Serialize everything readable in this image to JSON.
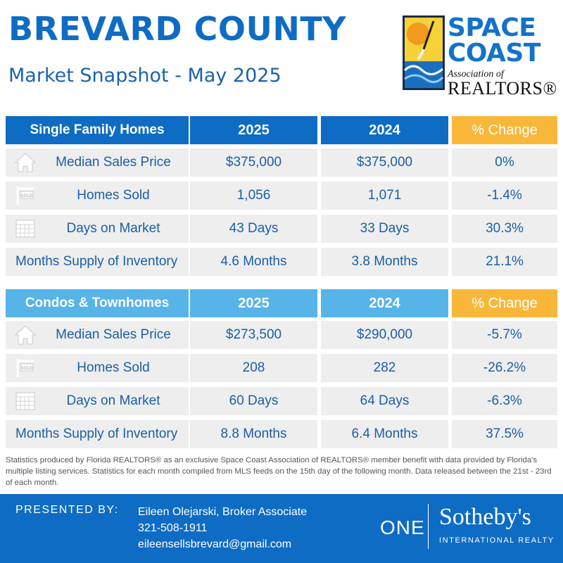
{
  "header": {
    "title": "BREVARD COUNTY",
    "subtitle": "Market Snapshot - May 2025"
  },
  "logo": {
    "line1": "SPACE",
    "line2": "COAST",
    "line3": "Association of",
    "line4": "REALTORS®",
    "colors": {
      "blue": "#1372c9",
      "orange": "#f29a1f",
      "yellow": "#f7d13a",
      "wave": "#1b6fc0"
    }
  },
  "single_family": {
    "header": {
      "label": "Single Family Homes",
      "col_2025": "2025",
      "col_2024": "2024",
      "col_change": "% Change"
    },
    "rows": [
      {
        "icon": "house-icon",
        "label": "Median Sales Price",
        "v2025": "$375,000",
        "v2024": "$375,000",
        "change": "0%"
      },
      {
        "icon": "sold-sign-icon",
        "label": "Homes Sold",
        "v2025": "1,056",
        "v2024": "1,071",
        "change": "-1.4%"
      },
      {
        "icon": "calendar-icon",
        "label": "Days on Market",
        "v2025": "43 Days",
        "v2024": "33 Days",
        "change": "30.3%"
      },
      {
        "icon": "",
        "label": "Months Supply of Inventory",
        "v2025": "4.6 Months",
        "v2024": "3.8 Months",
        "change": "21.1%"
      }
    ]
  },
  "condos": {
    "header": {
      "label": "Condos & Townhomes",
      "col_2025": "2025",
      "col_2024": "2024",
      "col_change": "% Change"
    },
    "rows": [
      {
        "icon": "house-icon",
        "label": "Median Sales Price",
        "v2025": "$273,500",
        "v2024": "$290,000",
        "change": "-5.7%"
      },
      {
        "icon": "sold-sign-icon",
        "label": "Homes Sold",
        "v2025": "208",
        "v2024": "282",
        "change": "-26.2%"
      },
      {
        "icon": "calendar-icon",
        "label": "Days on Market",
        "v2025": "60 Days",
        "v2024": "64 Days",
        "change": "-6.3%"
      },
      {
        "icon": "",
        "label": "Months Supply of Inventory",
        "v2025": "8.8 Months",
        "v2024": "6.4 Months",
        "change": "37.5%"
      }
    ]
  },
  "disclaimer": "Statistics produced by Florida REALTORS® as an exclusive Space Coast Association of REALTORS® member benefit with data provided by Florida's multiple listing services. Statistics for each month compiled from MLS feeds on the 15th day of the following month. Data released between the 21st - 23rd of each month.",
  "footer": {
    "presented_by": "PRESENTED BY:",
    "agent_name": "Eileen Olejarski, Broker Associate",
    "phone": "321-508-1911",
    "email": "eileensellsbrevard@gmail.com",
    "brand_one": "ONE",
    "brand_name": "Sotheby's",
    "brand_sub": "INTERNATIONAL REALTY"
  },
  "colors": {
    "primary_blue": "#0e6cc4",
    "light_blue": "#56b4e9",
    "orange": "#f9b739",
    "row_gray": "#eeeeee"
  }
}
